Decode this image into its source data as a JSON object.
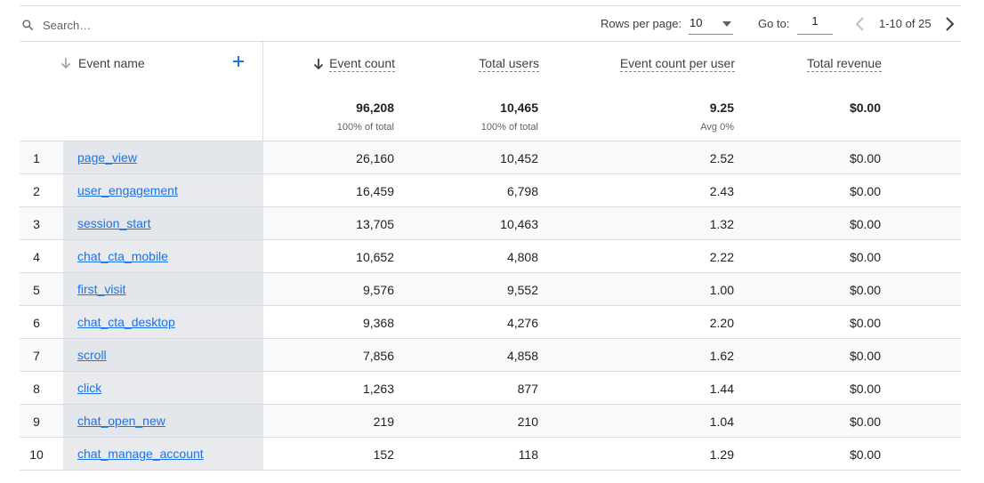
{
  "toolbar": {
    "search_placeholder": "Search…",
    "rows_per_page_label": "Rows per page:",
    "rows_per_page_value": "10",
    "goto_label": "Go to:",
    "goto_value": "1",
    "range_text": "1-10 of 25",
    "icons": {
      "search": "search-icon",
      "caret": "chevron-down-icon",
      "prev": "chevron-left-icon",
      "next": "chevron-right-icon"
    }
  },
  "table": {
    "dimension_header": "Event name",
    "add_icon": "plus-icon",
    "sort_icon": "arrow-down-icon",
    "columns": [
      {
        "label": "Event count",
        "total": "96,208",
        "sub": "100% of total",
        "sorted": true
      },
      {
        "label": "Total users",
        "total": "10,465",
        "sub": "100% of total"
      },
      {
        "label": "Event count per user",
        "total": "9.25",
        "sub": "Avg 0%"
      },
      {
        "label": "Total revenue",
        "total": "$0.00",
        "sub": ""
      }
    ],
    "rows": [
      {
        "index": "1",
        "event": "page_view",
        "event_count": "26,160",
        "total_users": "10,452",
        "per_user": "2.52",
        "revenue": "$0.00"
      },
      {
        "index": "2",
        "event": "user_engagement",
        "event_count": "16,459",
        "total_users": "6,798",
        "per_user": "2.43",
        "revenue": "$0.00"
      },
      {
        "index": "3",
        "event": "session_start",
        "event_count": "13,705",
        "total_users": "10,463",
        "per_user": "1.32",
        "revenue": "$0.00"
      },
      {
        "index": "4",
        "event": "chat_cta_mobile",
        "event_count": "10,652",
        "total_users": "4,808",
        "per_user": "2.22",
        "revenue": "$0.00"
      },
      {
        "index": "5",
        "event": "first_visit",
        "event_count": "9,576",
        "total_users": "9,552",
        "per_user": "1.00",
        "revenue": "$0.00"
      },
      {
        "index": "6",
        "event": "chat_cta_desktop",
        "event_count": "9,368",
        "total_users": "4,276",
        "per_user": "2.20",
        "revenue": "$0.00"
      },
      {
        "index": "7",
        "event": "scroll",
        "event_count": "7,856",
        "total_users": "4,858",
        "per_user": "1.62",
        "revenue": "$0.00"
      },
      {
        "index": "8",
        "event": "click",
        "event_count": "1,263",
        "total_users": "877",
        "per_user": "1.44",
        "revenue": "$0.00"
      },
      {
        "index": "9",
        "event": "chat_open_new",
        "event_count": "219",
        "total_users": "210",
        "per_user": "1.04",
        "revenue": "$0.00"
      },
      {
        "index": "10",
        "event": "chat_manage_account",
        "event_count": "152",
        "total_users": "118",
        "per_user": "1.29",
        "revenue": "$0.00"
      }
    ]
  },
  "colors": {
    "link": "#1a73e8",
    "dimension_bg": "#e8eaed",
    "stripe_bg": "#f8f9fa",
    "border": "#dadce0"
  }
}
